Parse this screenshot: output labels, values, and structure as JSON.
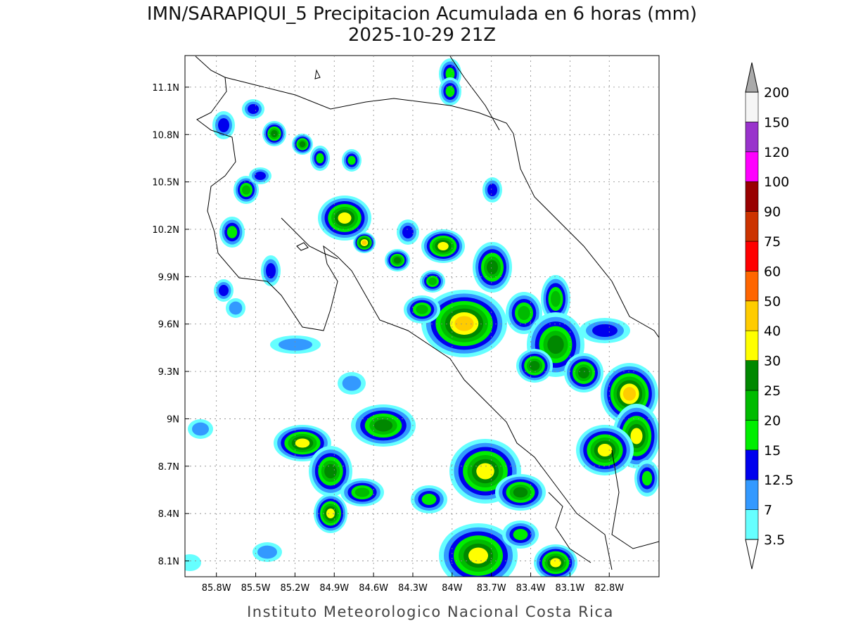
{
  "map": {
    "title": "IMN/SARAPIQUI_5 Precipitacion Acumulada en 6 horas (mm)",
    "subtitle": "2025-10-29 21Z",
    "footer": "Instituto Meteorologico Nacional Costa Rica",
    "xlim": [
      -86.04,
      -82.42
    ],
    "ylim": [
      8.0,
      11.3
    ],
    "grid": true,
    "xticks": [
      {
        "value": -85.8,
        "label": "85.8W"
      },
      {
        "value": -85.5,
        "label": "85.5W"
      },
      {
        "value": -85.2,
        "label": "85.2W"
      },
      {
        "value": -84.9,
        "label": "84.9W"
      },
      {
        "value": -84.6,
        "label": "84.6W"
      },
      {
        "value": -84.3,
        "label": "84.3W"
      },
      {
        "value": -84.0,
        "label": "84W"
      },
      {
        "value": -83.7,
        "label": "83.7W"
      },
      {
        "value": -83.4,
        "label": "83.4W"
      },
      {
        "value": -83.1,
        "label": "83.1W"
      },
      {
        "value": -82.8,
        "label": "82.8W"
      }
    ],
    "yticks": [
      {
        "value": 8.1,
        "label": "8.1N"
      },
      {
        "value": 8.4,
        "label": "8.4N"
      },
      {
        "value": 8.7,
        "label": "8.7N"
      },
      {
        "value": 9.0,
        "label": "9N"
      },
      {
        "value": 9.3,
        "label": "9.3N"
      },
      {
        "value": 9.6,
        "label": "9.6N"
      },
      {
        "value": 9.9,
        "label": "9.9N"
      },
      {
        "value": 10.2,
        "label": "10.2N"
      },
      {
        "value": 10.5,
        "label": "10.5N"
      },
      {
        "value": 10.8,
        "label": "10.8N"
      },
      {
        "value": 11.1,
        "label": "11.1N"
      }
    ],
    "colorbar": {
      "levels": [
        3.5,
        7,
        12.5,
        15,
        20,
        25,
        30,
        40,
        50,
        60,
        75,
        90,
        100,
        120,
        150,
        200
      ],
      "colors": [
        "#66ffff",
        "#3399ff",
        "#0000ee",
        "#00ee00",
        "#00bb00",
        "#008800",
        "#ffff00",
        "#ffcc00",
        "#ff6600",
        "#ff0000",
        "#cc3300",
        "#990000",
        "#ff00ff",
        "#9933cc",
        "#f5f5f5"
      ],
      "under_color": "#ffffff",
      "over_color": "#aaaaaa"
    }
  }
}
